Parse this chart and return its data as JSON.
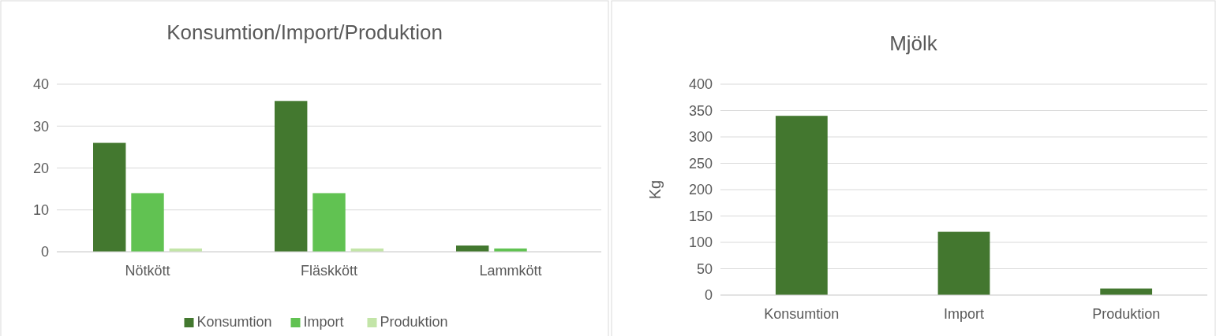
{
  "chart_data": [
    {
      "type": "bar",
      "title": "Konsumtion/Import/Produktion",
      "categories": [
        "Nötkött",
        "Fläskkött",
        "Lammkött"
      ],
      "series": [
        {
          "name": "Konsumtion",
          "color": "#43782f",
          "values": [
            26,
            36,
            1.5
          ]
        },
        {
          "name": "Import",
          "color": "#61c252",
          "values": [
            14,
            14,
            0.8
          ]
        },
        {
          "name": "Produktion",
          "color": "#c3e5a8",
          "values": [
            0.8,
            0.8,
            0
          ]
        }
      ],
      "ylim": [
        0,
        40
      ],
      "yticks": [
        0,
        10,
        20,
        30,
        40
      ],
      "grid": "y",
      "legend": "bottom"
    },
    {
      "type": "bar",
      "title": "Mjölk",
      "ylabel": "Kg",
      "categories": [
        "Konsumtion",
        "Import",
        "Produktion"
      ],
      "series": [
        {
          "color": "#43772f",
          "values": [
            340,
            120,
            12.5
          ]
        }
      ],
      "ylim": [
        0,
        400
      ],
      "yticks": [
        0,
        50,
        100,
        150,
        200,
        250,
        300,
        350,
        400
      ],
      "grid": "y",
      "legend": false
    }
  ]
}
